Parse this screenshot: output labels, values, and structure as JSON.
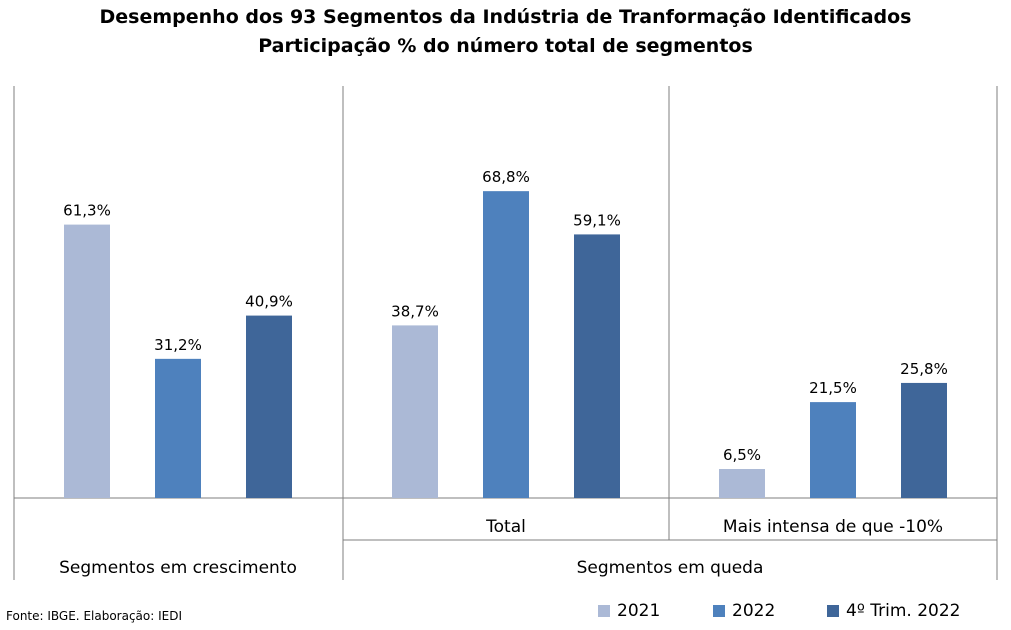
{
  "title": "Desempenho dos 93 Segmentos da Indústria de Tranformação Identificados",
  "subtitle": "Participação % do número total de segmentos",
  "source": "Fonte: IBGE. Elaboração: IEDI",
  "colors": {
    "2021": "#abb9d6",
    "2022": "#4e81bd",
    "q4": "#3f6699",
    "axis": "#7f7f7f"
  },
  "chart_data": {
    "type": "bar",
    "title": "Desempenho dos 93 Segmentos da Indústria de Tranformação Identificados",
    "subtitle": "Participação % do número total de segmentos",
    "categories": [
      "Segmentos em crescimento",
      "Total",
      "Mais intensa de que -10%"
    ],
    "category_groups": [
      {
        "label": "Segmentos em crescimento",
        "members": [
          ""
        ]
      },
      {
        "label": "Segmentos em queda",
        "members": [
          "Total",
          "Mais intensa de que -10%"
        ]
      }
    ],
    "sub_labels": [
      "",
      "Total",
      "Mais intensa de que -10%"
    ],
    "group_labels": [
      "Segmentos em crescimento",
      "Segmentos em queda"
    ],
    "series": [
      {
        "name": "2021",
        "values": [
          61.3,
          38.7,
          6.5
        ],
        "labels": [
          "61,3%",
          "38,7%",
          "6,5%"
        ]
      },
      {
        "name": "2022",
        "values": [
          31.2,
          68.8,
          21.5
        ],
        "labels": [
          "31,2%",
          "68,8%",
          "21,5%"
        ]
      },
      {
        "name": "4º Trim. 2022",
        "values": [
          40.9,
          59.1,
          25.8
        ],
        "labels": [
          "40,9%",
          "59,1%",
          "25,8%"
        ]
      }
    ],
    "ylim": [
      0,
      73
    ],
    "grid": false,
    "legend": "bottom-right",
    "xlabel": "",
    "ylabel": ""
  }
}
